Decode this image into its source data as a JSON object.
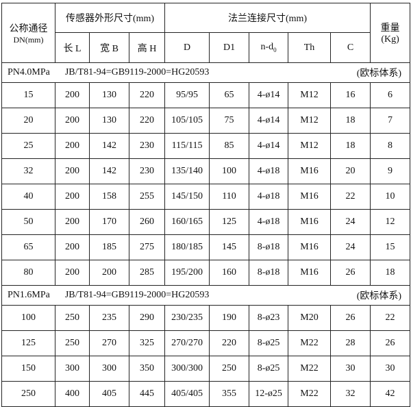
{
  "header": {
    "dn_label": "公称通径",
    "dn_unit": "DN(mm)",
    "sensor_group": "传感器外形尺寸(mm)",
    "flange_group": "法兰连接尺寸(mm)",
    "weight_label": "重量",
    "weight_unit": "(Kg)",
    "columns": {
      "L": "长 L",
      "B": "宽 B",
      "H": "高 H",
      "D": "D",
      "D1": "D1",
      "nd": "n-d",
      "nd_sub": "0",
      "Th": "Th",
      "C": "C"
    }
  },
  "sections": [
    {
      "pressure": "PN4.0MPa",
      "standard": "JB/T81-94=GB9119-2000=HG20593",
      "system": "(欧标体系)",
      "rows": [
        [
          "15",
          "200",
          "130",
          "220",
          "95/95",
          "65",
          "4-ø14",
          "M12",
          "16",
          "6"
        ],
        [
          "20",
          "200",
          "130",
          "220",
          "105/105",
          "75",
          "4-ø14",
          "M12",
          "18",
          "7"
        ],
        [
          "25",
          "200",
          "142",
          "230",
          "115/115",
          "85",
          "4-ø14",
          "M12",
          "18",
          "8"
        ],
        [
          "32",
          "200",
          "142",
          "230",
          "135/140",
          "100",
          "4-ø18",
          "M16",
          "20",
          "9"
        ],
        [
          "40",
          "200",
          "158",
          "255",
          "145/150",
          "110",
          "4-ø18",
          "M16",
          "22",
          "10"
        ],
        [
          "50",
          "200",
          "170",
          "260",
          "160/165",
          "125",
          "4-ø18",
          "M16",
          "24",
          "12"
        ],
        [
          "65",
          "200",
          "185",
          "275",
          "180/185",
          "145",
          "8-ø18",
          "M16",
          "24",
          "15"
        ],
        [
          "80",
          "200",
          "200",
          "285",
          "195/200",
          "160",
          "8-ø18",
          "M16",
          "26",
          "18"
        ]
      ]
    },
    {
      "pressure": "PN1.6MPa",
      "standard": "JB/T81-94=GB9119-2000=HG20593",
      "system": "(欧标体系)",
      "rows": [
        [
          "100",
          "250",
          "235",
          "290",
          "230/235",
          "190",
          "8-ø23",
          "M20",
          "26",
          "22"
        ],
        [
          "125",
          "250",
          "270",
          "325",
          "270/270",
          "220",
          "8-ø25",
          "M22",
          "28",
          "26"
        ],
        [
          "150",
          "300",
          "300",
          "350",
          "300/300",
          "250",
          "8-ø25",
          "M22",
          "30",
          "30"
        ],
        [
          "250",
          "400",
          "405",
          "445",
          "405/405",
          "355",
          "12-ø25",
          "M22",
          "32",
          "42"
        ]
      ]
    }
  ]
}
